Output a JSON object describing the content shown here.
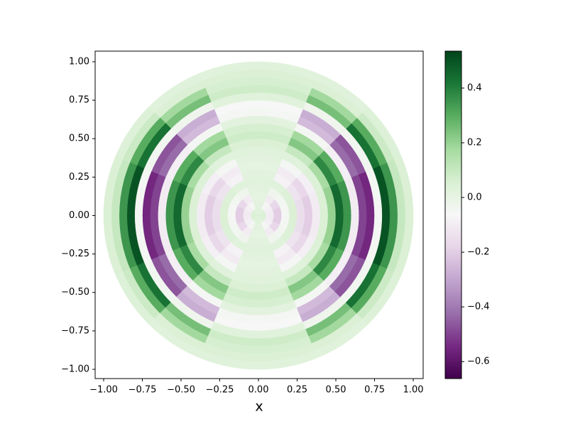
{
  "chart_data": {
    "type": "polar-heatmap",
    "xlabel": "x",
    "xlim": [
      -1.055,
      1.064
    ],
    "ylim": [
      -1.06,
      1.069
    ],
    "xticks": [
      {
        "value": -1,
        "label": "−1.00"
      },
      {
        "value": -0.75,
        "label": "−0.75"
      },
      {
        "value": -0.5,
        "label": "−0.50"
      },
      {
        "value": -0.25,
        "label": "−0.25"
      },
      {
        "value": 0,
        "label": "0.00"
      },
      {
        "value": 0.25,
        "label": "0.25"
      },
      {
        "value": 0.5,
        "label": "0.50"
      },
      {
        "value": 0.75,
        "label": "0.75"
      },
      {
        "value": 1,
        "label": "1.00"
      }
    ],
    "yticks": [
      {
        "value": -1,
        "label": "−1.00"
      },
      {
        "value": -0.75,
        "label": "−0.75"
      },
      {
        "value": -0.5,
        "label": "−0.50"
      },
      {
        "value": -0.25,
        "label": "−0.25"
      },
      {
        "value": 0,
        "label": "0.00"
      },
      {
        "value": 0.25,
        "label": "0.25"
      },
      {
        "value": 0.5,
        "label": "0.50"
      },
      {
        "value": 0.75,
        "label": "0.75"
      },
      {
        "value": 1,
        "label": "1.00"
      }
    ],
    "r_edges": [
      0,
      0.05,
      0.1,
      0.15,
      0.2,
      0.25,
      0.3,
      0.35,
      0.4,
      0.45,
      0.5,
      0.55,
      0.6,
      0.65,
      0.7,
      0.75,
      0.8,
      0.85,
      0.9,
      0.95,
      1.0
    ],
    "theta_edges": [
      0,
      22.5,
      45,
      67.5,
      90,
      112.5,
      135,
      157.5,
      180,
      202.5,
      225,
      247.5,
      270,
      292.5,
      315,
      337.5,
      360
    ],
    "z": [
      [
        0.05,
        -0.1,
        -0.2,
        -0.05,
        0.05,
        -0.15,
        -0.2,
        -0.1,
        0.05,
        0.2,
        0.45,
        0.35,
        -0.1,
        -0.5,
        -0.55,
        -0.05,
        0.5,
        0.35,
        0.1,
        0.05
      ],
      [
        0.04,
        -0.09,
        -0.17,
        -0.04,
        0.04,
        -0.13,
        -0.17,
        -0.09,
        0.04,
        0.17,
        0.38,
        0.3,
        -0.09,
        -0.43,
        -0.47,
        -0.04,
        0.43,
        0.3,
        0.09,
        0.04
      ],
      [
        0.03,
        -0.05,
        -0.1,
        -0.03,
        0.03,
        -0.08,
        -0.1,
        -0.05,
        0.03,
        0.1,
        0.23,
        0.18,
        -0.05,
        -0.25,
        -0.28,
        -0.03,
        0.25,
        0.18,
        0.05,
        0.03
      ],
      [
        0.03,
        0.02,
        0.01,
        0.02,
        0.03,
        0.02,
        0.01,
        0.02,
        0.03,
        0.05,
        0.08,
        0.06,
        0.02,
        -0.05,
        -0.06,
        0.03,
        0.08,
        0.06,
        0.05,
        0.03
      ],
      [
        0.03,
        0.02,
        0.01,
        0.02,
        0.03,
        0.02,
        0.01,
        0.02,
        0.03,
        0.05,
        0.08,
        0.06,
        0.02,
        -0.05,
        -0.06,
        0.03,
        0.08,
        0.06,
        0.05,
        0.03
      ],
      [
        0.03,
        -0.05,
        -0.1,
        -0.03,
        0.03,
        -0.08,
        -0.1,
        -0.05,
        0.03,
        0.1,
        0.23,
        0.18,
        -0.05,
        -0.25,
        -0.28,
        -0.03,
        0.25,
        0.18,
        0.05,
        0.03
      ],
      [
        0.04,
        -0.09,
        -0.17,
        -0.04,
        0.04,
        -0.13,
        -0.17,
        -0.09,
        0.04,
        0.17,
        0.38,
        0.3,
        -0.09,
        -0.43,
        -0.47,
        -0.04,
        0.43,
        0.3,
        0.09,
        0.04
      ],
      [
        0.05,
        -0.1,
        -0.2,
        -0.05,
        0.05,
        -0.15,
        -0.2,
        -0.1,
        0.05,
        0.2,
        0.45,
        0.35,
        -0.1,
        -0.5,
        -0.55,
        -0.05,
        0.5,
        0.35,
        0.1,
        0.05
      ],
      [
        0.05,
        -0.1,
        -0.2,
        -0.05,
        0.05,
        -0.15,
        -0.2,
        -0.1,
        0.05,
        0.2,
        0.45,
        0.35,
        -0.1,
        -0.5,
        -0.55,
        -0.05,
        0.5,
        0.35,
        0.1,
        0.05
      ],
      [
        0.04,
        -0.09,
        -0.17,
        -0.04,
        0.04,
        -0.13,
        -0.17,
        -0.09,
        0.04,
        0.17,
        0.38,
        0.3,
        -0.09,
        -0.43,
        -0.47,
        -0.04,
        0.43,
        0.3,
        0.09,
        0.04
      ],
      [
        0.03,
        -0.05,
        -0.1,
        -0.03,
        0.03,
        -0.08,
        -0.1,
        -0.05,
        0.03,
        0.1,
        0.23,
        0.18,
        -0.05,
        -0.25,
        -0.28,
        -0.03,
        0.25,
        0.18,
        0.05,
        0.03
      ],
      [
        0.03,
        0.02,
        0.01,
        0.02,
        0.03,
        0.02,
        0.01,
        0.02,
        0.03,
        0.05,
        0.08,
        0.06,
        0.02,
        -0.05,
        -0.06,
        0.03,
        0.08,
        0.06,
        0.05,
        0.03
      ],
      [
        0.03,
        0.02,
        0.01,
        0.02,
        0.03,
        0.02,
        0.01,
        0.02,
        0.03,
        0.05,
        0.08,
        0.06,
        0.02,
        -0.05,
        -0.06,
        0.03,
        0.08,
        0.06,
        0.05,
        0.03
      ],
      [
        0.03,
        -0.05,
        -0.1,
        -0.03,
        0.03,
        -0.08,
        -0.1,
        -0.05,
        0.03,
        0.1,
        0.23,
        0.18,
        -0.05,
        -0.25,
        -0.28,
        -0.03,
        0.25,
        0.18,
        0.05,
        0.03
      ],
      [
        0.04,
        -0.09,
        -0.17,
        -0.04,
        0.04,
        -0.13,
        -0.17,
        -0.09,
        0.04,
        0.17,
        0.38,
        0.3,
        -0.09,
        -0.43,
        -0.47,
        -0.04,
        0.43,
        0.3,
        0.09,
        0.04
      ],
      [
        0.05,
        -0.1,
        -0.2,
        -0.05,
        0.05,
        -0.15,
        -0.2,
        -0.1,
        0.05,
        0.2,
        0.45,
        0.35,
        -0.1,
        -0.5,
        -0.55,
        -0.05,
        0.5,
        0.35,
        0.1,
        0.05
      ]
    ],
    "clim": [
      -0.662,
      0.535
    ],
    "cticks": [
      {
        "value": -0.6,
        "label": "−0.6"
      },
      {
        "value": -0.4,
        "label": "−0.4"
      },
      {
        "value": -0.2,
        "label": "−0.2"
      },
      {
        "value": 0,
        "label": "0.0"
      },
      0.2,
      0.4
    ],
    "colormap": [
      "#40004b",
      "#762a83",
      "#9970ab",
      "#c2a5cf",
      "#e7d4e8",
      "#f7f7f7",
      "#d9f0d3",
      "#a6dba0",
      "#5aae61",
      "#1b7837",
      "#00441b"
    ]
  }
}
